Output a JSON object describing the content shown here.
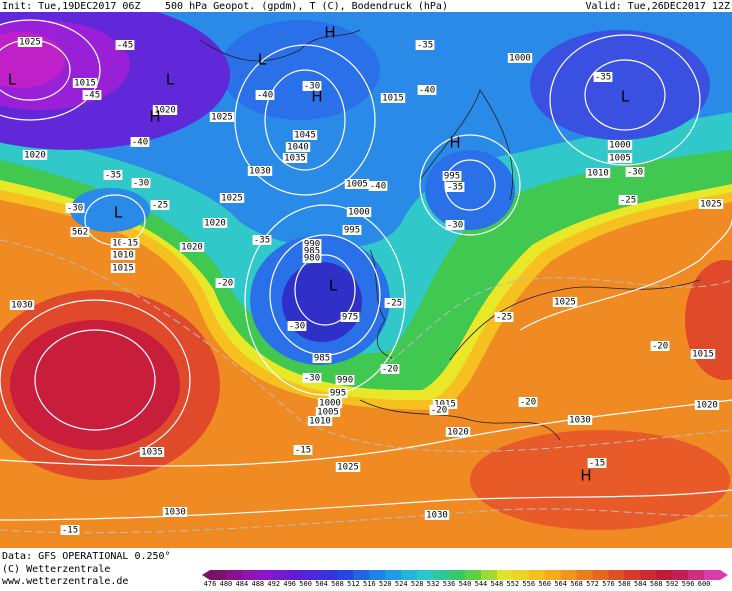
{
  "header": {
    "init": "Init: Tue,19DEC2017 06Z",
    "title": "500 hPa Geopot. (gpdm), T (C), Bodendruck (hPa)",
    "valid": "Valid: Tue,26DEC2017 12Z"
  },
  "pressure_labels": [
    "1025",
    "1015",
    "1020",
    "1025",
    "1020",
    "1045",
    "1040",
    "1035",
    "1030",
    "1025",
    "1020",
    "1020",
    "1005",
    "1010",
    "1015",
    "1030",
    "1035",
    "1030",
    "1025",
    "1030",
    "1020",
    "1015",
    "1030",
    "1025",
    "1020",
    "1015",
    "1025",
    "1000",
    "1005",
    "1010",
    "1000",
    "1015",
    "1005",
    "1000",
    "995",
    "990",
    "985",
    "980",
    "975",
    "985",
    "990",
    "995",
    "1000",
    "1005",
    "1010",
    "995"
  ],
  "temperature_labels": [
    "-45",
    "-45",
    "-40",
    "-40",
    "-35",
    "-40",
    "-35",
    "-30",
    "-35",
    "-30",
    "-25",
    "-30",
    "-15",
    "-40",
    "-35",
    "-30",
    "-35",
    "-25",
    "-30",
    "-20",
    "-30",
    "-20",
    "-25",
    "-20",
    "-20",
    "-15",
    "-15",
    "-15",
    "-25",
    "-30",
    "-20"
  ],
  "pressure_centers": [
    "L",
    "L",
    "H",
    "L",
    "H",
    "H",
    "L",
    "H",
    "L",
    "L",
    "H"
  ],
  "geopotential_label": "562",
  "footer": {
    "data": "Data: GFS OPERATIONAL 0.250°",
    "copyright": "(C) Wetterzentrale",
    "url": "www.wetterzentrale.de"
  },
  "colorbar": [
    476,
    480,
    484,
    488,
    492,
    496,
    500,
    504,
    508,
    512,
    516,
    520,
    524,
    528,
    532,
    536,
    540,
    544,
    548,
    552,
    556,
    560,
    564,
    568,
    572,
    576,
    580,
    584,
    588,
    592,
    596,
    600
  ]
}
